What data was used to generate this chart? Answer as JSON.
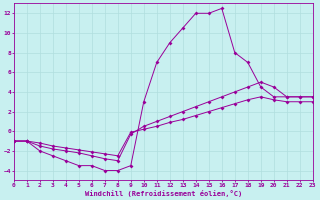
{
  "xlabel": "Windchill (Refroidissement éolien,°C)",
  "xlim": [
    0,
    23
  ],
  "ylim": [
    -5,
    13
  ],
  "yticks": [
    -4,
    -2,
    0,
    2,
    4,
    6,
    8,
    10,
    12
  ],
  "xticks": [
    0,
    1,
    2,
    3,
    4,
    5,
    6,
    7,
    8,
    9,
    10,
    11,
    12,
    13,
    14,
    15,
    16,
    17,
    18,
    19,
    20,
    21,
    22,
    23
  ],
  "bg_color": "#c8f0f0",
  "line_color": "#990099",
  "grid_color": "#b0dede",
  "line1_x": [
    0,
    1,
    2,
    3,
    4,
    5,
    6,
    7,
    8,
    9,
    10,
    11,
    12,
    13,
    14,
    15,
    16,
    17,
    18,
    19,
    20,
    21,
    22,
    23
  ],
  "line1_y": [
    -1,
    -1,
    -2,
    -2.5,
    -3,
    -3.5,
    -3.5,
    -4,
    -4,
    -3.5,
    3,
    7,
    9,
    10.5,
    12,
    12,
    12.5,
    8,
    7,
    4.5,
    3.5,
    3.5,
    3.5,
    3.5
  ],
  "line2_x": [
    0,
    1,
    2,
    3,
    4,
    5,
    6,
    7,
    8,
    9,
    10,
    11,
    12,
    13,
    14,
    15,
    16,
    17,
    18,
    19,
    20,
    21,
    22,
    23
  ],
  "line2_y": [
    -1,
    -1,
    -1.5,
    -1.8,
    -2,
    -2.2,
    -2.5,
    -2.8,
    -3,
    -0.3,
    0.5,
    1.0,
    1.5,
    2.0,
    2.5,
    3.0,
    3.5,
    4.0,
    4.5,
    5.0,
    4.5,
    3.5,
    3.5,
    3.5
  ],
  "line3_x": [
    0,
    1,
    2,
    3,
    4,
    5,
    6,
    7,
    8,
    9,
    10,
    11,
    12,
    13,
    14,
    15,
    16,
    17,
    18,
    19,
    20,
    21,
    22,
    23
  ],
  "line3_y": [
    -1,
    -1,
    -1.2,
    -1.5,
    -1.7,
    -1.9,
    -2.1,
    -2.3,
    -2.5,
    -0.1,
    0.2,
    0.5,
    0.9,
    1.2,
    1.6,
    2.0,
    2.4,
    2.8,
    3.2,
    3.5,
    3.2,
    3.0,
    3.0,
    3.0
  ]
}
